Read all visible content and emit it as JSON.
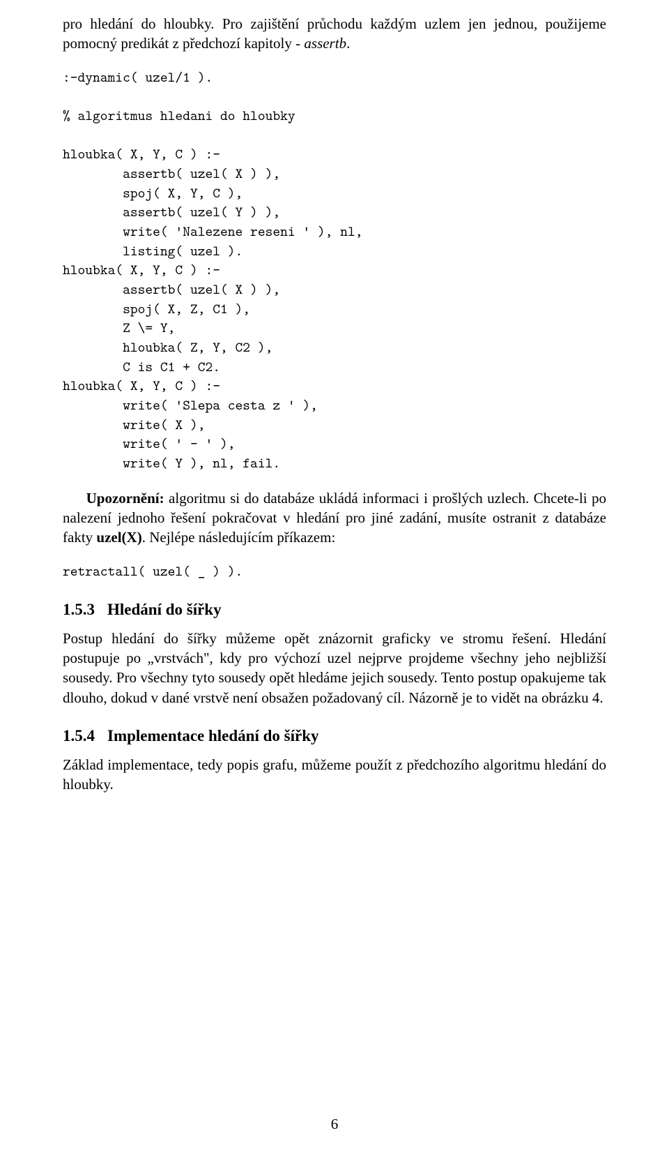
{
  "intro_paragraph": {
    "pre": "pro hledání do hloubky. Pro zajištění průchodu každým uzlem jen jednou, použijeme pomocný predikát z předchozí kapitoly - ",
    "italic": "assertb",
    "post": "."
  },
  "code_block_1": ":-dynamic( uzel/1 ).\n\n% algoritmus hledani do hloubky\n\nhloubka( X, Y, C ) :-\n        assertb( uzel( X ) ),\n        spoj( X, Y, C ),\n        assertb( uzel( Y ) ),\n        write( 'Nalezene reseni ' ), nl,\n        listing( uzel ).\nhloubka( X, Y, C ) :-\n        assertb( uzel( X ) ),\n        spoj( X, Z, C1 ),\n        Z \\= Y,\n        hloubka( Z, Y, C2 ),\n        C is C1 + C2.\nhloubka( X, Y, C ) :-\n        write( 'Slepa cesta z ' ),\n        write( X ),\n        write( ' - ' ),\n        write( Y ), nl, fail.",
  "warning_paragraph": {
    "bold": "Upozornění:",
    "text1": " algoritmu si do databáze ukládá informaci i prošlých uzlech. Chcete-li po nalezení jednoho řešení pokračovat v hledání pro jiné zadání, musíte ostranit z databáze fakty ",
    "bold_inline": "uzel(X)",
    "text2": ". Nejlépe následujícím příkazem:"
  },
  "code_block_2": "retractall( uzel( _ ) ).",
  "section_153": {
    "number": "1.5.3",
    "title": "Hledání do šířky"
  },
  "para_153": {
    "text": "Postup hledání do šířky můžeme opět znázornit graficky ve stromu řešení. Hledání postupuje po „vrstvách\", kdy pro výchozí uzel nejprve projdeme všechny jeho nejbližší sousedy. Pro všechny tyto sousedy opět hledáme jejich sousedy. Tento postup opakujeme tak dlouho, dokud v dané vrstvě není obsažen požadovaný cíl. Názorně je to vidět na obrázku ",
    "ref": "4",
    "tail": "."
  },
  "section_154": {
    "number": "1.5.4",
    "title": "Implementace hledání do šířky"
  },
  "para_154": "Základ implementace, tedy popis grafu, můžeme použít z předchozího algoritmu hledání do hloubky.",
  "page_number": "6"
}
